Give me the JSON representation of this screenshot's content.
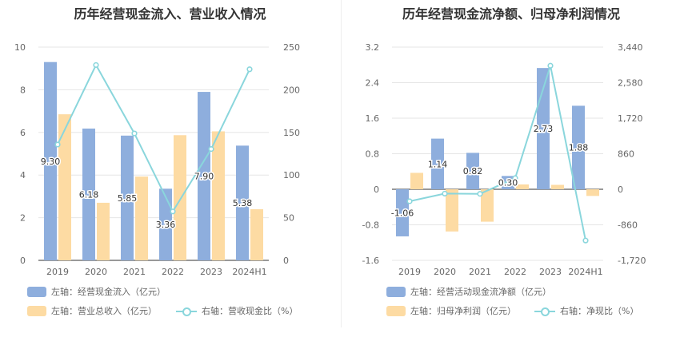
{
  "chart_data": [
    {
      "type": "bar",
      "title": "历年经营现金流入、营业收入情况",
      "categories": [
        "2019",
        "2020",
        "2021",
        "2022",
        "2023",
        "2024H1"
      ],
      "left_axis": {
        "ylim": [
          0,
          10
        ],
        "ticks": [
          "0",
          "2",
          "4",
          "6",
          "8",
          "10"
        ]
      },
      "right_axis": {
        "ylim": [
          0,
          250
        ],
        "ticks": [
          "0",
          "50",
          "100",
          "150",
          "200",
          "250"
        ]
      },
      "series": [
        {
          "name": "左轴：经营现金流入（亿元）",
          "kind": "bar",
          "axis": "left",
          "color": "#8eaedd",
          "values": [
            9.3,
            6.18,
            5.85,
            3.36,
            7.9,
            5.38
          ],
          "labels": [
            "9.30",
            "6.18",
            "5.85",
            "3.36",
            "7.90",
            "5.38"
          ]
        },
        {
          "name": "左轴：营业总收入（亿元）",
          "kind": "bar",
          "axis": "left",
          "color": "#fddba3",
          "values": [
            6.85,
            2.7,
            3.93,
            5.87,
            6.05,
            2.4
          ]
        },
        {
          "name": "右轴：营收现金比（%）",
          "kind": "line",
          "axis": "right",
          "color": "#8ad6dc",
          "values": [
            135.8,
            229.0,
            148.8,
            57.3,
            130.5,
            224.0
          ]
        }
      ]
    },
    {
      "type": "bar",
      "title": "历年经营现金流净额、归母净利润情况",
      "categories": [
        "2019",
        "2020",
        "2021",
        "2022",
        "2023",
        "2024H1"
      ],
      "left_axis": {
        "ylim": [
          -1.6,
          3.2
        ],
        "ticks": [
          "-1.6",
          "-0.8",
          "0",
          "0.8",
          "1.6",
          "2.4",
          "3.2"
        ]
      },
      "right_axis": {
        "ylim": [
          -1720,
          3440
        ],
        "ticks": [
          "-1,720",
          "-860",
          "0",
          "860",
          "1,720",
          "2,580",
          "3,440"
        ]
      },
      "series": [
        {
          "name": "左轴：经营活动现金流净额（亿元）",
          "kind": "bar",
          "axis": "left",
          "color": "#8eaedd",
          "values": [
            -1.06,
            1.14,
            0.82,
            0.3,
            2.73,
            1.88
          ],
          "labels": [
            "-1.06",
            "1.14",
            "0.82",
            "0.30",
            "2.73",
            "1.88"
          ]
        },
        {
          "name": "左轴：归母净利润（亿元）",
          "kind": "bar",
          "axis": "left",
          "color": "#fddba3",
          "values": [
            0.37,
            -0.95,
            -0.73,
            0.11,
            0.1,
            -0.15
          ]
        },
        {
          "name": "右轴：净现比（%）",
          "kind": "line",
          "axis": "right",
          "color": "#8ad6dc",
          "values": [
            -290,
            -105,
            -110,
            270,
            2990,
            -1240
          ]
        }
      ]
    }
  ]
}
